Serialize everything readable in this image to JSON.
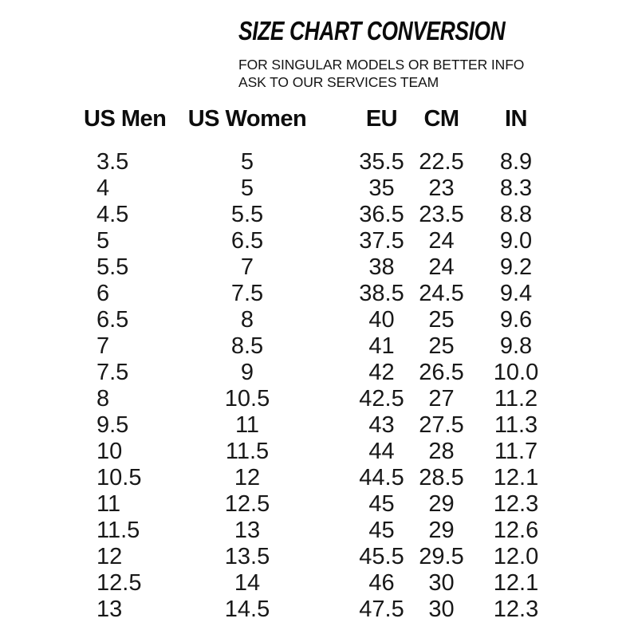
{
  "page": {
    "title": "SIZE CHART CONVERSION",
    "subtitle_line1": "FOR SINGULAR MODELS OR BETTER INFO",
    "subtitle_line2": "ASK TO OUR SERVICES TEAM"
  },
  "colors": {
    "background": "#ffffff",
    "title_text": "#0a0a0a",
    "body_text": "#181818"
  },
  "chart_data": {
    "type": "table",
    "title": "SIZE CHART CONVERSION",
    "columns": [
      "US Men",
      "US Women",
      "EU",
      "CM",
      "IN"
    ],
    "rows": [
      [
        "3.5",
        "5",
        "35.5",
        "22.5",
        "8.9"
      ],
      [
        "4",
        "5",
        "35",
        "23",
        "8.3"
      ],
      [
        "4.5",
        "5.5",
        "36.5",
        "23.5",
        "8.8"
      ],
      [
        "5",
        "6.5",
        "37.5",
        "24",
        "9.0"
      ],
      [
        "5.5",
        "7",
        "38",
        "24",
        "9.2"
      ],
      [
        "6",
        "7.5",
        "38.5",
        "24.5",
        "9.4"
      ],
      [
        "6.5",
        "8",
        "40",
        "25",
        "9.6"
      ],
      [
        "7",
        "8.5",
        "41",
        "25",
        "9.8"
      ],
      [
        "7.5",
        "9",
        "42",
        "26.5",
        "10.0"
      ],
      [
        "8",
        "10.5",
        "42.5",
        "27",
        "11.2"
      ],
      [
        "9.5",
        "11",
        "43",
        "27.5",
        "11.3"
      ],
      [
        "10",
        "11.5",
        "44",
        "28",
        "11.7"
      ],
      [
        "10.5",
        "12",
        "44.5",
        "28.5",
        "12.1"
      ],
      [
        "11",
        "12.5",
        "45",
        "29",
        "12.3"
      ],
      [
        "11.5",
        "13",
        "45",
        "29",
        "12.6"
      ],
      [
        "12",
        "13.5",
        "45.5",
        "29.5",
        "12.0"
      ],
      [
        "12.5",
        "14",
        "46",
        "30",
        "12.1"
      ],
      [
        "13",
        "14.5",
        "47.5",
        "30",
        "12.3"
      ]
    ]
  }
}
